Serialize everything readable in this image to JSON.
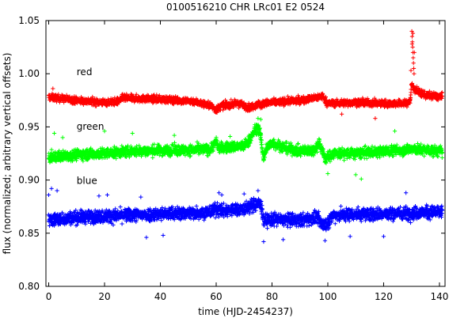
{
  "chart_data": {
    "type": "scatter",
    "title": "0100516210 CHR LRc01 E2 0524",
    "xlabel": "time (HJD-2454237)",
    "ylabel": "flux (normalized; arbitrary vertical offsets)",
    "xlim": [
      -1,
      142
    ],
    "ylim": [
      0.8,
      1.05
    ],
    "xticks": [
      0,
      20,
      40,
      60,
      80,
      100,
      120,
      140
    ],
    "yticks": [
      0.8,
      0.85,
      0.9,
      0.95,
      1.0,
      1.05
    ],
    "xtick_labels": [
      "0",
      "20",
      "40",
      "60",
      "80",
      "100",
      "120",
      "140"
    ],
    "ytick_labels": [
      "0.80",
      "0.85",
      "0.90",
      "0.95",
      "1.00",
      "1.05"
    ],
    "grid": false,
    "legend": "none",
    "series": [
      {
        "name": "red",
        "color": "#ff0000",
        "marker": "plus",
        "profile": [
          [
            0,
            0.978
          ],
          [
            10,
            0.975
          ],
          [
            20,
            0.973
          ],
          [
            25,
            0.974
          ],
          [
            26,
            0.977
          ],
          [
            40,
            0.976
          ],
          [
            52,
            0.974
          ],
          [
            58,
            0.97
          ],
          [
            60,
            0.966
          ],
          [
            62,
            0.97
          ],
          [
            68,
            0.972
          ],
          [
            72,
            0.968
          ],
          [
            75,
            0.972
          ],
          [
            76,
            0.97
          ],
          [
            77,
            0.972
          ],
          [
            80,
            0.973
          ],
          [
            90,
            0.975
          ],
          [
            95,
            0.977
          ],
          [
            98,
            0.979
          ],
          [
            100,
            0.972
          ],
          [
            110,
            0.973
          ],
          [
            120,
            0.972
          ],
          [
            128,
            0.972
          ],
          [
            129.5,
            0.974
          ],
          [
            130,
            0.99
          ],
          [
            131,
            0.985
          ],
          [
            135,
            0.98
          ],
          [
            141,
            0.978
          ]
        ],
        "scatter": 0.003,
        "outliers": [
          [
            130.1,
            1.04
          ],
          [
            130.2,
            1.035
          ],
          [
            130.3,
            1.03
          ],
          [
            130.4,
            1.025
          ],
          [
            130.5,
            1.02
          ],
          [
            130.6,
            1.015
          ],
          [
            130.7,
            1.01
          ],
          [
            130.8,
            1.005
          ],
          [
            130.9,
            1.0
          ],
          [
            131.0,
            1.02
          ],
          [
            130.2,
            1.028
          ],
          [
            130.5,
            1.038
          ],
          [
            1.5,
            0.986
          ],
          [
            117,
            0.958
          ],
          [
            105,
            0.962
          ],
          [
            129.8,
            1.003
          ]
        ]
      },
      {
        "name": "green",
        "color": "#00ff00",
        "marker": "plus",
        "profile": [
          [
            0,
            0.921
          ],
          [
            10,
            0.924
          ],
          [
            20,
            0.925
          ],
          [
            30,
            0.927
          ],
          [
            40,
            0.928
          ],
          [
            50,
            0.928
          ],
          [
            58,
            0.929
          ],
          [
            60,
            0.936
          ],
          [
            61,
            0.93
          ],
          [
            70,
            0.932
          ],
          [
            72,
            0.938
          ],
          [
            74,
            0.947
          ],
          [
            75,
            0.95
          ],
          [
            76,
            0.94
          ],
          [
            77,
            0.92
          ],
          [
            78,
            0.93
          ],
          [
            80,
            0.935
          ],
          [
            85,
            0.93
          ],
          [
            90,
            0.927
          ],
          [
            95,
            0.928
          ],
          [
            97,
            0.935
          ],
          [
            99,
            0.92
          ],
          [
            102,
            0.925
          ],
          [
            110,
            0.925
          ],
          [
            120,
            0.927
          ],
          [
            130,
            0.929
          ],
          [
            141,
            0.927
          ]
        ],
        "scatter": 0.0045,
        "outliers": [
          [
            2,
            0.944
          ],
          [
            20,
            0.946
          ],
          [
            76,
            0.957
          ],
          [
            75,
            0.958
          ],
          [
            30,
            0.944
          ],
          [
            112,
            0.901
          ],
          [
            110,
            0.905
          ],
          [
            5,
            0.94
          ],
          [
            45,
            0.942
          ],
          [
            65,
            0.941
          ],
          [
            124,
            0.946
          ],
          [
            100,
            0.906
          ]
        ]
      },
      {
        "name": "blue",
        "color": "#0000ff",
        "marker": "plus",
        "profile": [
          [
            0,
            0.862
          ],
          [
            10,
            0.865
          ],
          [
            20,
            0.866
          ],
          [
            30,
            0.867
          ],
          [
            40,
            0.868
          ],
          [
            50,
            0.869
          ],
          [
            58,
            0.87
          ],
          [
            60,
            0.873
          ],
          [
            62,
            0.871
          ],
          [
            70,
            0.873
          ],
          [
            75,
            0.878
          ],
          [
            76,
            0.877
          ],
          [
            77,
            0.862
          ],
          [
            80,
            0.863
          ],
          [
            90,
            0.862
          ],
          [
            96,
            0.865
          ],
          [
            98,
            0.858
          ],
          [
            100,
            0.86
          ],
          [
            102,
            0.867
          ],
          [
            110,
            0.868
          ],
          [
            120,
            0.868
          ],
          [
            130,
            0.869
          ],
          [
            141,
            0.87
          ]
        ],
        "scatter": 0.0055,
        "outliers": [
          [
            1,
            0.892
          ],
          [
            3,
            0.89
          ],
          [
            21,
            0.886
          ],
          [
            61,
            0.888
          ],
          [
            75,
            0.89
          ],
          [
            70,
            0.887
          ],
          [
            62,
            0.886
          ],
          [
            35,
            0.846
          ],
          [
            41,
            0.848
          ],
          [
            99,
            0.843
          ],
          [
            108,
            0.847
          ],
          [
            128,
            0.888
          ],
          [
            120,
            0.847
          ],
          [
            0,
            0.886
          ],
          [
            18,
            0.885
          ],
          [
            77,
            0.842
          ],
          [
            84,
            0.844
          ],
          [
            33,
            0.884
          ]
        ]
      }
    ],
    "labels": [
      {
        "text": "red",
        "x": 10,
        "y": 0.9985
      },
      {
        "text": "green",
        "x": 10,
        "y": 0.9475
      },
      {
        "text": "blue",
        "x": 10,
        "y": 0.8965
      }
    ]
  }
}
